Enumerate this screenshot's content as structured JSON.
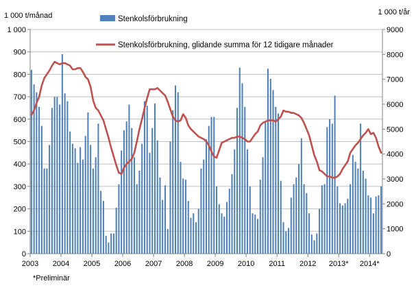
{
  "chart_data": {
    "type": "bar",
    "left_axis_label": "1 000 t/månad",
    "right_axis_label": "1 000 t/år",
    "footnote": "*Preliminär",
    "left_ylim": [
      0,
      1000
    ],
    "right_ylim": [
      0,
      9000
    ],
    "left_ticks": [
      "0",
      "100",
      "200",
      "300",
      "400",
      "500",
      "600",
      "700",
      "800",
      "900",
      "1 000"
    ],
    "right_ticks": [
      "0",
      "1000",
      "2000",
      "3000",
      "4000",
      "5000",
      "6000",
      "7000",
      "8000",
      "9000"
    ],
    "x_tick_labels": [
      "2003",
      "2004",
      "2005",
      "2006",
      "2007",
      "2008",
      "2009",
      "2010",
      "2011",
      "2012",
      "2013*",
      "2014*"
    ],
    "grid": "horizontal",
    "colors": {
      "bars": "#4F81BD",
      "line": "#C0504D",
      "grid": "#BFBFBF"
    },
    "series": [
      {
        "name": "Stenkolsförbrukning",
        "type": "bar",
        "axis": "left",
        "values": [
          820,
          755,
          720,
          655,
          570,
          380,
          380,
          485,
          650,
          700,
          700,
          665,
          890,
          715,
          680,
          545,
          490,
          470,
          405,
          475,
          420,
          525,
          630,
          485,
          380,
          430,
          580,
          280,
          235,
          80,
          50,
          90,
          90,
          205,
          310,
          460,
          550,
          590,
          665,
          560,
          430,
          310,
          370,
          490,
          680,
          660,
          450,
          560,
          670,
          505,
          340,
          240,
          305,
          110,
          500,
          640,
          750,
          720,
          410,
          335,
          330,
          235,
          160,
          180,
          140,
          200,
          380,
          420,
          510,
          570,
          610,
          610,
          300,
          220,
          180,
          165,
          230,
          290,
          355,
          465,
          650,
          830,
          760,
          655,
          465,
          300,
          180,
          175,
          155,
          330,
          430,
          590,
          825,
          780,
          730,
          655,
          625,
          325,
          140,
          100,
          115,
          250,
          310,
          340,
          400,
          515,
          310,
          270,
          180,
          85,
          60,
          90,
          200,
          305,
          310,
          565,
          600,
          580,
          705,
          300,
          225,
          215,
          225,
          245,
          310,
          440,
          410,
          380,
          580,
          370,
          335,
          260,
          250,
          180,
          255,
          260,
          300
        ]
      },
      {
        "name": "Stenkolsförbrukning, glidande summa för 12 tidigare månader",
        "type": "line",
        "axis": "right",
        "x": [
          0,
          1,
          2,
          3,
          4,
          5,
          6,
          7,
          8,
          9,
          10,
          11,
          12,
          13,
          14,
          15,
          16,
          17,
          18,
          19,
          20,
          21,
          22,
          23,
          24,
          25,
          26,
          27,
          28,
          29,
          30,
          31,
          32,
          33,
          34,
          35,
          36,
          37,
          38,
          39,
          40,
          41,
          42,
          43,
          44,
          45,
          46,
          47,
          48,
          49,
          50,
          51,
          52,
          53,
          54,
          55,
          56,
          57,
          58,
          59,
          60,
          61,
          62,
          63,
          64,
          65,
          66,
          67,
          68,
          69,
          70,
          71,
          72,
          73,
          74,
          75,
          76,
          77,
          78,
          79,
          80,
          81,
          82,
          83,
          84,
          85,
          86,
          87,
          88,
          89,
          90,
          91,
          92,
          93,
          94,
          95,
          96,
          97,
          98,
          99,
          100,
          101,
          102,
          103,
          104,
          105,
          106,
          107,
          108,
          109,
          110,
          111,
          112,
          113,
          114,
          115,
          116,
          117,
          118,
          119,
          120,
          121,
          122,
          123,
          124,
          125,
          126,
          127,
          128,
          129,
          130,
          131,
          132,
          133,
          134,
          135,
          136
        ],
        "values": [
          5570,
          5750,
          6050,
          6300,
          6750,
          7050,
          7200,
          7350,
          7550,
          7700,
          7650,
          7600,
          7650,
          7650,
          7600,
          7550,
          7400,
          7400,
          7450,
          7450,
          7300,
          7100,
          7000,
          6700,
          6150,
          5850,
          5750,
          5550,
          5350,
          5000,
          4650,
          4250,
          3900,
          3550,
          3250,
          3200,
          3450,
          3600,
          3700,
          3800,
          4050,
          4500,
          5000,
          5400,
          5850,
          6250,
          6600,
          6600,
          6600,
          6650,
          6550,
          6450,
          6350,
          6100,
          5800,
          5500,
          5350,
          5300,
          5350,
          5600,
          5450,
          5150,
          5000,
          4900,
          4800,
          4700,
          4650,
          4600,
          4500,
          4350,
          4100,
          3900,
          3850,
          4150,
          4450,
          4500,
          4550,
          4600,
          4650,
          4650,
          4700,
          4700,
          4650,
          4600,
          4500,
          4500,
          4650,
          4800,
          4900,
          5150,
          5250,
          5300,
          5350,
          5350,
          5350,
          5300,
          5400,
          5500,
          5750,
          5700,
          5700,
          5650,
          5650,
          5600,
          5550,
          5450,
          5250,
          5000,
          4750,
          4350,
          3950,
          3700,
          3350,
          3300,
          3200,
          3100,
          3100,
          3050,
          3050,
          3100,
          3200,
          3400,
          3550,
          3700,
          4050,
          4200,
          4350,
          4450,
          4600,
          4750,
          4850,
          5000,
          4800,
          4850,
          4650,
          4300,
          4050
        ]
      }
    ]
  }
}
